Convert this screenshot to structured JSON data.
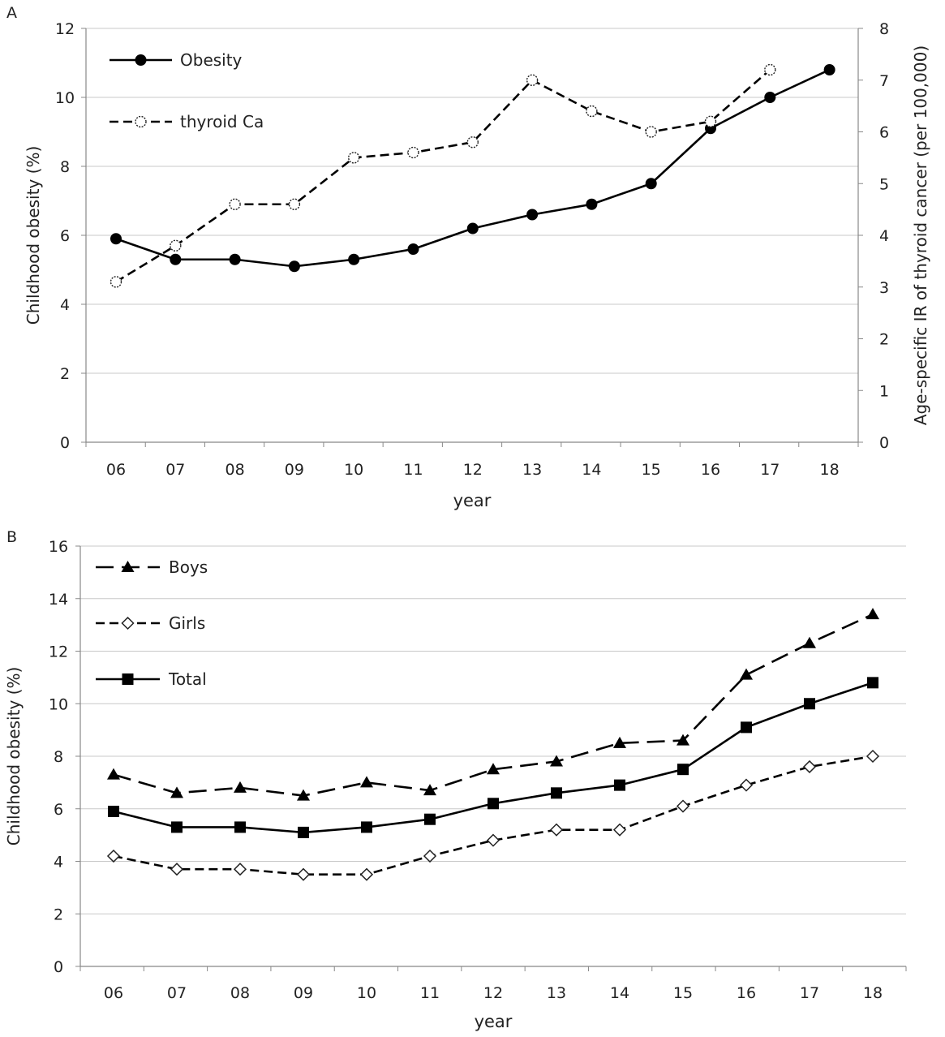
{
  "chart_data": [
    {
      "panel_label": "A",
      "type": "line",
      "categories": [
        "06",
        "07",
        "08",
        "09",
        "10",
        "11",
        "12",
        "13",
        "14",
        "15",
        "16",
        "17",
        "18"
      ],
      "xlabel": "year",
      "ylabel": "Childhood obesity (%)",
      "ylim": [
        0,
        12
      ],
      "yticks": [
        0,
        2,
        4,
        6,
        8,
        10,
        12
      ],
      "y2label": "Age-specific IR of thyroid cancer (per 100,000)",
      "y2lim": [
        0,
        8
      ],
      "y2ticks": [
        0,
        1,
        2,
        3,
        4,
        5,
        6,
        7,
        8
      ],
      "grid": true,
      "legend_position": "top-left",
      "series": [
        {
          "name": "Obesity",
          "axis": "left",
          "line": "solid",
          "marker": "filled-circle",
          "values": [
            5.9,
            5.3,
            5.3,
            5.1,
            5.3,
            5.6,
            6.2,
            6.6,
            6.9,
            7.5,
            9.1,
            10.0,
            10.8
          ]
        },
        {
          "name": "thyroid Ca",
          "axis": "right",
          "line": "dashed",
          "marker": "open-circle",
          "values": [
            3.1,
            3.8,
            4.6,
            4.6,
            5.5,
            5.6,
            5.8,
            7.0,
            6.4,
            6.0,
            6.2,
            7.2,
            null
          ]
        }
      ]
    },
    {
      "panel_label": "B",
      "type": "line",
      "categories": [
        "06",
        "07",
        "08",
        "09",
        "10",
        "11",
        "12",
        "13",
        "14",
        "15",
        "16",
        "17",
        "18"
      ],
      "xlabel": "year",
      "ylabel": "Childhood obesity (%)",
      "ylim": [
        0,
        16
      ],
      "yticks": [
        0,
        2,
        4,
        6,
        8,
        10,
        12,
        14,
        16
      ],
      "grid": true,
      "legend_position": "top-left",
      "series": [
        {
          "name": "Boys",
          "line": "long-dash",
          "marker": "filled-triangle",
          "values": [
            7.3,
            6.6,
            6.8,
            6.5,
            7.0,
            6.7,
            7.5,
            7.8,
            8.5,
            8.6,
            11.1,
            12.3,
            13.4
          ]
        },
        {
          "name": "Girls",
          "line": "dashed",
          "marker": "open-diamond",
          "values": [
            4.2,
            3.7,
            3.7,
            3.5,
            3.5,
            4.2,
            4.8,
            5.2,
            5.2,
            6.1,
            6.9,
            7.6,
            8.0
          ]
        },
        {
          "name": "Total",
          "line": "solid",
          "marker": "filled-square",
          "values": [
            5.9,
            5.3,
            5.3,
            5.1,
            5.3,
            5.6,
            6.2,
            6.6,
            6.9,
            7.5,
            9.1,
            10.0,
            10.8
          ]
        }
      ]
    }
  ]
}
